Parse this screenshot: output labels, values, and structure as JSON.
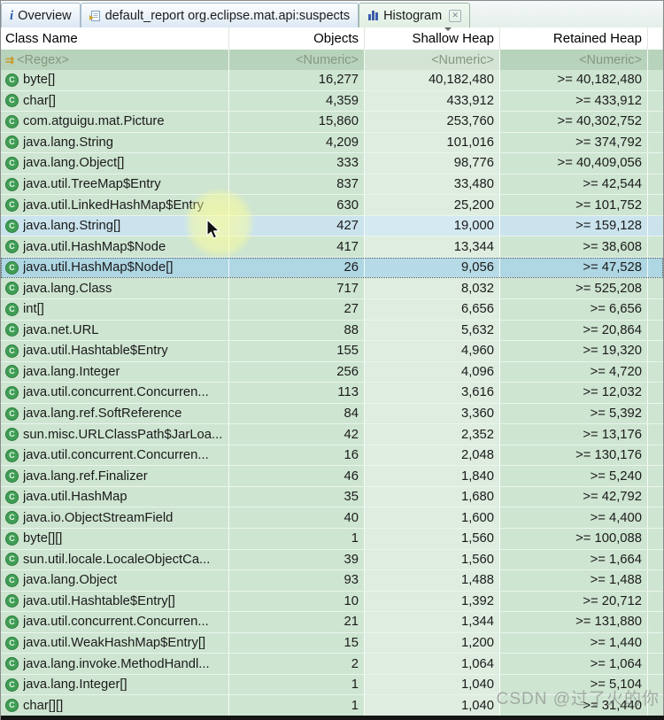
{
  "tabs": [
    {
      "label": "Overview",
      "icon": "info-icon",
      "active": false
    },
    {
      "label": "default_report org.eclipse.mat.api:suspects",
      "icon": "report-icon",
      "active": false
    },
    {
      "label": "Histogram",
      "icon": "histogram-icon",
      "active": true,
      "closable": true
    }
  ],
  "table": {
    "columns": {
      "class_name": "Class Name",
      "objects": "Objects",
      "shallow_heap": "Shallow Heap",
      "retained_heap": "Retained Heap"
    },
    "sort_column": "Shallow Heap",
    "sort_direction": "descending",
    "filter_row": {
      "class_name": "<Regex>",
      "objects": "<Numeric>",
      "shallow_heap": "<Numeric>",
      "retained_heap": "<Numeric>"
    },
    "rows": [
      {
        "name": "byte[]",
        "objects": "16,277",
        "shallow": "40,182,480",
        "retained": ">= 40,182,480",
        "state": ""
      },
      {
        "name": "char[]",
        "objects": "4,359",
        "shallow": "433,912",
        "retained": ">= 433,912",
        "state": ""
      },
      {
        "name": "com.atguigu.mat.Picture",
        "objects": "15,860",
        "shallow": "253,760",
        "retained": ">= 40,302,752",
        "state": ""
      },
      {
        "name": "java.lang.String",
        "objects": "4,209",
        "shallow": "101,016",
        "retained": ">= 374,792",
        "state": ""
      },
      {
        "name": "java.lang.Object[]",
        "objects": "333",
        "shallow": "98,776",
        "retained": ">= 40,409,056",
        "state": ""
      },
      {
        "name": "java.util.TreeMap$Entry",
        "objects": "837",
        "shallow": "33,480",
        "retained": ">= 42,544",
        "state": ""
      },
      {
        "name": "java.util.LinkedHashMap$Entry",
        "objects": "630",
        "shallow": "25,200",
        "retained": ">= 101,752",
        "state": ""
      },
      {
        "name": "java.lang.String[]",
        "objects": "427",
        "shallow": "19,000",
        "retained": ">= 159,128",
        "state": "hover"
      },
      {
        "name": "java.util.HashMap$Node",
        "objects": "417",
        "shallow": "13,344",
        "retained": ">= 38,608",
        "state": ""
      },
      {
        "name": "java.util.HashMap$Node[]",
        "objects": "26",
        "shallow": "9,056",
        "retained": ">= 47,528",
        "state": "selected"
      },
      {
        "name": "java.lang.Class",
        "objects": "717",
        "shallow": "8,032",
        "retained": ">= 525,208",
        "state": ""
      },
      {
        "name": "int[]",
        "objects": "27",
        "shallow": "6,656",
        "retained": ">= 6,656",
        "state": ""
      },
      {
        "name": "java.net.URL",
        "objects": "88",
        "shallow": "5,632",
        "retained": ">= 20,864",
        "state": ""
      },
      {
        "name": "java.util.Hashtable$Entry",
        "objects": "155",
        "shallow": "4,960",
        "retained": ">= 19,320",
        "state": ""
      },
      {
        "name": "java.lang.Integer",
        "objects": "256",
        "shallow": "4,096",
        "retained": ">= 4,720",
        "state": ""
      },
      {
        "name": "java.util.concurrent.Concurren...",
        "objects": "113",
        "shallow": "3,616",
        "retained": ">= 12,032",
        "state": ""
      },
      {
        "name": "java.lang.ref.SoftReference",
        "objects": "84",
        "shallow": "3,360",
        "retained": ">= 5,392",
        "state": ""
      },
      {
        "name": "sun.misc.URLClassPath$JarLoa...",
        "objects": "42",
        "shallow": "2,352",
        "retained": ">= 13,176",
        "state": ""
      },
      {
        "name": "java.util.concurrent.Concurren...",
        "objects": "16",
        "shallow": "2,048",
        "retained": ">= 130,176",
        "state": ""
      },
      {
        "name": "java.lang.ref.Finalizer",
        "objects": "46",
        "shallow": "1,840",
        "retained": ">= 5,240",
        "state": ""
      },
      {
        "name": "java.util.HashMap",
        "objects": "35",
        "shallow": "1,680",
        "retained": ">= 42,792",
        "state": ""
      },
      {
        "name": "java.io.ObjectStreamField",
        "objects": "40",
        "shallow": "1,600",
        "retained": ">= 4,400",
        "state": ""
      },
      {
        "name": "byte[][]",
        "objects": "1",
        "shallow": "1,560",
        "retained": ">= 100,088",
        "state": ""
      },
      {
        "name": "sun.util.locale.LocaleObjectCa...",
        "objects": "39",
        "shallow": "1,560",
        "retained": ">= 1,664",
        "state": ""
      },
      {
        "name": "java.lang.Object",
        "objects": "93",
        "shallow": "1,488",
        "retained": ">= 1,488",
        "state": ""
      },
      {
        "name": "java.util.Hashtable$Entry[]",
        "objects": "10",
        "shallow": "1,392",
        "retained": ">= 20,712",
        "state": ""
      },
      {
        "name": "java.util.concurrent.Concurren...",
        "objects": "21",
        "shallow": "1,344",
        "retained": ">= 131,880",
        "state": ""
      },
      {
        "name": "java.util.WeakHashMap$Entry[]",
        "objects": "15",
        "shallow": "1,200",
        "retained": ">= 1,440",
        "state": ""
      },
      {
        "name": "java.lang.invoke.MethodHandl...",
        "objects": "2",
        "shallow": "1,064",
        "retained": ">= 1,064",
        "state": ""
      },
      {
        "name": "java.lang.Integer[]",
        "objects": "1",
        "shallow": "1,040",
        "retained": ">= 5,104",
        "state": ""
      },
      {
        "name": "char[][]",
        "objects": "1",
        "shallow": "1,040",
        "retained": ">= 31,440",
        "state": ""
      }
    ]
  },
  "class_icon_letter": "C",
  "filter_icon_glyph": "⇉",
  "watermark": "CSDN @过了火的你",
  "colors": {
    "row_green": "#cee5d1",
    "filter_green": "#b8d3bb",
    "hover_blue": "#cae3ed",
    "selected_blue": "#aed6e3",
    "active_tab_green": "#e5f2e6",
    "inactive_tab_blue": "#dbe8f3",
    "class_icon_green": "#3f9e54",
    "histogram_icon_blue": "#3b5ea8"
  }
}
